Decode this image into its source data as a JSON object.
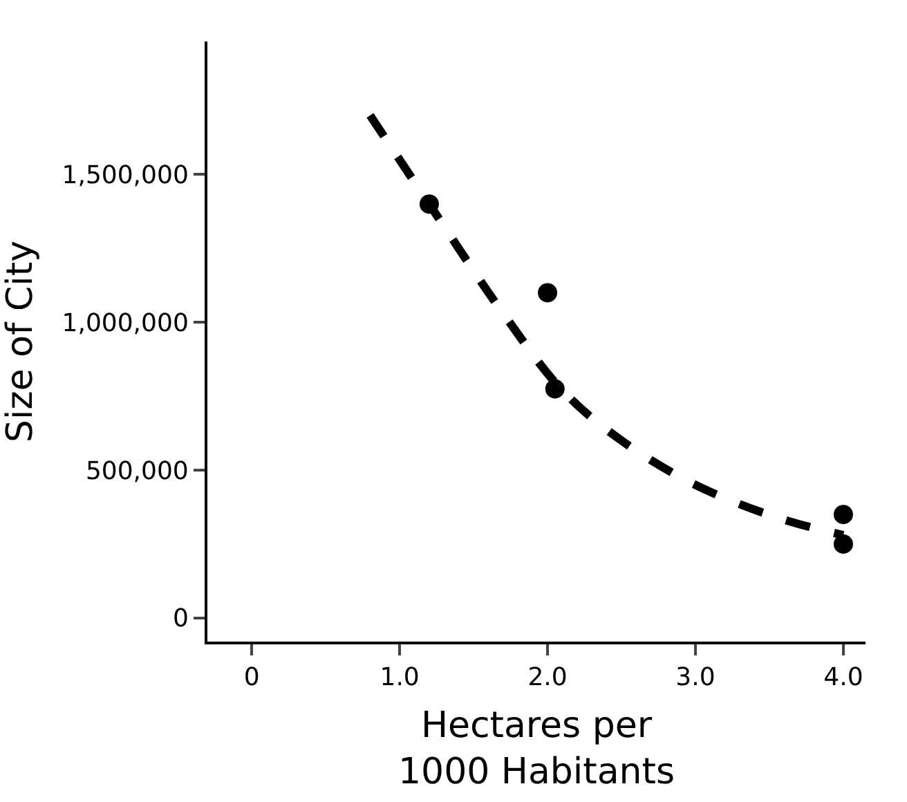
{
  "chart_data": {
    "type": "scatter",
    "xlabel": "Hectares per\n1000 Habitants",
    "ylabel": "Size of City",
    "xlim": [
      -0.3,
      4.15
    ],
    "ylim": [
      -80000,
      1950000
    ],
    "xticks": [
      0,
      {
        "value": 1,
        "label": "1.0"
      },
      {
        "value": 2,
        "label": "2.0"
      },
      {
        "value": 3,
        "label": "3.0"
      },
      {
        "value": 4,
        "label": "4.0"
      }
    ],
    "yticks": [
      0,
      {
        "value": 500000,
        "label": "500,000"
      },
      {
        "value": 1000000,
        "label": "1,000,000"
      },
      {
        "value": 1500000,
        "label": "1,500,000"
      }
    ],
    "legend": false,
    "series": [
      {
        "marker": "circle",
        "color": "#000000",
        "x": [
          1.2,
          2.0,
          2.05,
          4.0,
          4.0
        ],
        "values": [
          1400000,
          1100000,
          775000,
          350000,
          250000
        ]
      },
      {
        "type": "line",
        "marker": "none",
        "line_style": "dashed",
        "color": "#000000",
        "x": [
          0.8,
          1.2,
          1.7,
          2.1,
          2.5,
          3.0,
          3.55,
          4.0
        ],
        "values": [
          1700000,
          1400000,
          1030000,
          770000,
          600000,
          450000,
          340000,
          280000
        ]
      }
    ]
  }
}
